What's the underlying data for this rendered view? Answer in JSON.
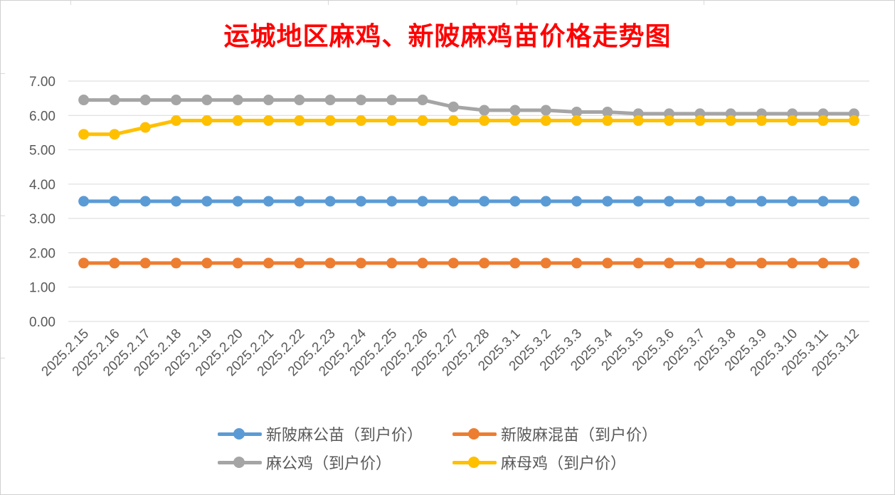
{
  "chart_data": {
    "type": "line",
    "title": "运城地区麻鸡、新陂麻鸡苗价格走势图",
    "xlabel": "",
    "ylabel": "",
    "ylim": [
      0,
      7
    ],
    "yticks": [
      "0.00",
      "1.00",
      "2.00",
      "3.00",
      "4.00",
      "5.00",
      "6.00",
      "7.00"
    ],
    "grid": true,
    "legend_position": "bottom",
    "categories": [
      "2025.2.15",
      "2025.2.16",
      "2025.2.17",
      "2025.2.18",
      "2025.2.19",
      "2025.2.20",
      "2025.2.21",
      "2025.2.22",
      "2025.2.23",
      "2025.2.24",
      "2025.2.25",
      "2025.2.26",
      "2025.2.27",
      "2025.2.28",
      "2025.3.1",
      "2025.3.2",
      "2025.3.3",
      "2025.3.4",
      "2025.3.5",
      "2025.3.6",
      "2025.3.7",
      "2025.3.8",
      "2025.3.9",
      "2025.3.10",
      "2025.3.11",
      "2025.3.12"
    ],
    "series": [
      {
        "name": "新陂麻公苗（到户价）",
        "color": "#5b9bd5",
        "values": [
          3.5,
          3.5,
          3.5,
          3.5,
          3.5,
          3.5,
          3.5,
          3.5,
          3.5,
          3.5,
          3.5,
          3.5,
          3.5,
          3.5,
          3.5,
          3.5,
          3.5,
          3.5,
          3.5,
          3.5,
          3.5,
          3.5,
          3.5,
          3.5,
          3.5,
          3.5
        ]
      },
      {
        "name": "新陂麻混苗（到户价）",
        "color": "#ed7d31",
        "values": [
          1.7,
          1.7,
          1.7,
          1.7,
          1.7,
          1.7,
          1.7,
          1.7,
          1.7,
          1.7,
          1.7,
          1.7,
          1.7,
          1.7,
          1.7,
          1.7,
          1.7,
          1.7,
          1.7,
          1.7,
          1.7,
          1.7,
          1.7,
          1.7,
          1.7,
          1.7
        ]
      },
      {
        "name": "麻公鸡（到户价）",
        "color": "#a5a5a5",
        "values": [
          6.45,
          6.45,
          6.45,
          6.45,
          6.45,
          6.45,
          6.45,
          6.45,
          6.45,
          6.45,
          6.45,
          6.45,
          6.25,
          6.15,
          6.15,
          6.15,
          6.1,
          6.1,
          6.05,
          6.05,
          6.05,
          6.05,
          6.05,
          6.05,
          6.05,
          6.05
        ]
      },
      {
        "name": "麻母鸡（到户价）",
        "color": "#ffc000",
        "values": [
          5.45,
          5.45,
          5.65,
          5.85,
          5.85,
          5.85,
          5.85,
          5.85,
          5.85,
          5.85,
          5.85,
          5.85,
          5.85,
          5.85,
          5.85,
          5.85,
          5.85,
          5.85,
          5.85,
          5.85,
          5.85,
          5.85,
          5.85,
          5.85,
          5.85,
          5.85
        ]
      }
    ]
  }
}
